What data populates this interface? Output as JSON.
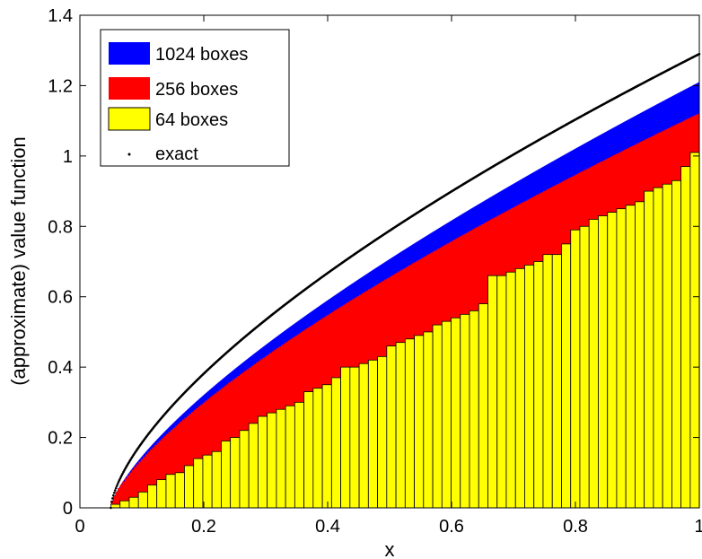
{
  "chart_data": {
    "type": "bar",
    "xlabel": "x",
    "ylabel": "(approximate) value function",
    "xlim": [
      0,
      1
    ],
    "ylim": [
      0,
      1.4
    ],
    "xticks": [
      "0",
      "0.2",
      "0.4",
      "0.6",
      "0.8",
      "1"
    ],
    "yticks": [
      "0",
      "0.2",
      "0.4",
      "0.6",
      "0.8",
      "1",
      "1.2",
      "1.4"
    ],
    "grid": false,
    "legend_position": "top-left",
    "series": [
      {
        "name": "1024 boxes",
        "type": "bar",
        "color": "#0000ff",
        "x0": 0.05,
        "x1": 1.0,
        "bins": 1024,
        "value_at_start": 0.0,
        "value_at_end": 1.21
      },
      {
        "name": "256 boxes",
        "type": "bar",
        "color": "#ff0000",
        "x0": 0.05,
        "x1": 1.0,
        "bins": 256,
        "value_at_start": 0.0,
        "value_at_end": 1.12
      },
      {
        "name": "64 boxes",
        "type": "bar",
        "color": "#ffff00",
        "x": [
          0.0574,
          0.0722,
          0.0871,
          0.1019,
          0.1168,
          0.1316,
          0.1465,
          0.1613,
          0.1762,
          0.191,
          0.2059,
          0.2207,
          0.2356,
          0.2504,
          0.2653,
          0.2801,
          0.295,
          0.3098,
          0.3247,
          0.3395,
          0.3543,
          0.3692,
          0.384,
          0.3989,
          0.4137,
          0.4286,
          0.4434,
          0.4583,
          0.4731,
          0.488,
          0.5028,
          0.5177,
          0.5325,
          0.5474,
          0.5622,
          0.5771,
          0.5919,
          0.6067,
          0.6216,
          0.6364,
          0.6513,
          0.6661,
          0.681,
          0.6958,
          0.7107,
          0.7255,
          0.7404,
          0.7552,
          0.7701,
          0.7849,
          0.7998,
          0.8146,
          0.8295,
          0.8443,
          0.8592,
          0.874,
          0.8888,
          0.9037,
          0.9185,
          0.9334,
          0.9482,
          0.9631,
          0.9779,
          0.9928
        ],
        "values": [
          0.01,
          0.02,
          0.03,
          0.045,
          0.065,
          0.08,
          0.095,
          0.1,
          0.12,
          0.14,
          0.15,
          0.16,
          0.19,
          0.2,
          0.22,
          0.24,
          0.26,
          0.27,
          0.28,
          0.29,
          0.3,
          0.33,
          0.34,
          0.35,
          0.37,
          0.4,
          0.4,
          0.41,
          0.42,
          0.43,
          0.46,
          0.47,
          0.48,
          0.49,
          0.5,
          0.52,
          0.53,
          0.54,
          0.55,
          0.56,
          0.58,
          0.66,
          0.66,
          0.67,
          0.68,
          0.69,
          0.7,
          0.72,
          0.72,
          0.75,
          0.79,
          0.8,
          0.82,
          0.83,
          0.84,
          0.85,
          0.86,
          0.87,
          0.9,
          0.91,
          0.92,
          0.93,
          0.97,
          1.01
        ]
      },
      {
        "name": "exact",
        "type": "scatter",
        "color": "#000000",
        "x0": 0.05,
        "x1": 1.0,
        "y_at_start": 0.0,
        "y_at_end": 1.29
      }
    ]
  }
}
